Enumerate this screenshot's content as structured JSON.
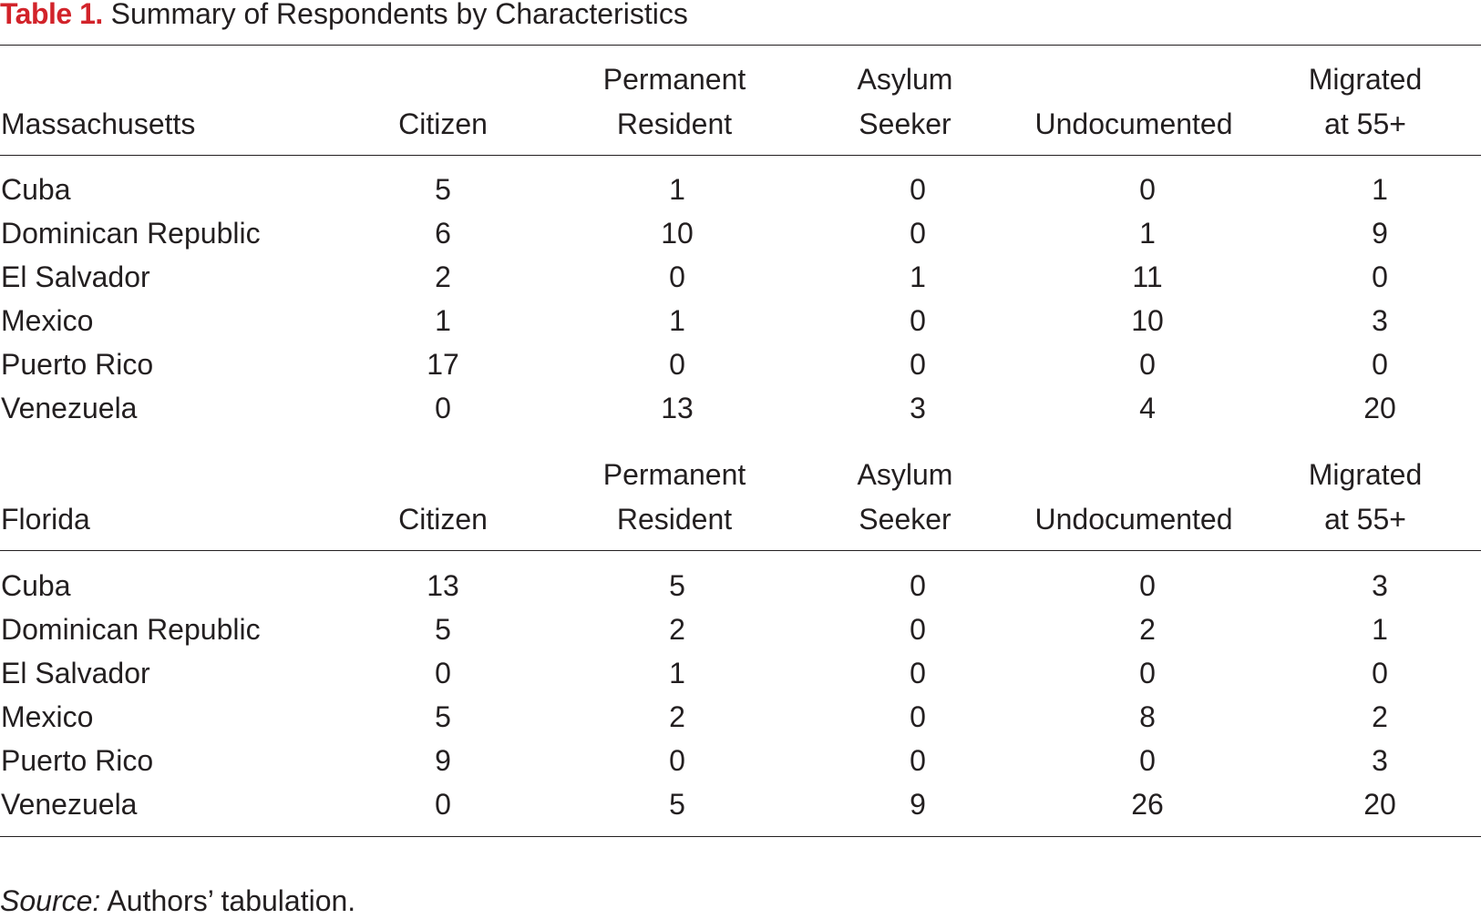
{
  "caption": {
    "label": "Table 1.",
    "text": "Summary of Respondents by Characteristics"
  },
  "columns": [
    {
      "line1": "",
      "line2": "Citizen"
    },
    {
      "line1": "Permanent",
      "line2": "Resident"
    },
    {
      "line1": "Asylum",
      "line2": "Seeker"
    },
    {
      "line1": "",
      "line2": "Undocumented"
    },
    {
      "line1": "Migrated",
      "line2": "at 55+"
    }
  ],
  "sections": [
    {
      "state": "Massachusetts",
      "rows": [
        {
          "country": "Cuba",
          "values": [
            "5",
            "1",
            "0",
            "0",
            "1"
          ]
        },
        {
          "country": "Dominican Republic",
          "values": [
            "6",
            "10",
            "0",
            "1",
            "9"
          ]
        },
        {
          "country": "El Salvador",
          "values": [
            "2",
            "0",
            "1",
            "11",
            "0"
          ]
        },
        {
          "country": "Mexico",
          "values": [
            "1",
            "1",
            "0",
            "10",
            "3"
          ]
        },
        {
          "country": "Puerto Rico",
          "values": [
            "17",
            "0",
            "0",
            "0",
            "0"
          ]
        },
        {
          "country": "Venezuela",
          "values": [
            "0",
            "13",
            "3",
            "4",
            "20"
          ]
        }
      ]
    },
    {
      "state": "Florida",
      "rows": [
        {
          "country": "Cuba",
          "values": [
            "13",
            "5",
            "0",
            "0",
            "3"
          ]
        },
        {
          "country": "Dominican Republic",
          "values": [
            "5",
            "2",
            "0",
            "2",
            "1"
          ]
        },
        {
          "country": "El Salvador",
          "values": [
            "0",
            "1",
            "0",
            "0",
            "0"
          ]
        },
        {
          "country": "Mexico",
          "values": [
            "5",
            "2",
            "0",
            "8",
            "2"
          ]
        },
        {
          "country": "Puerto Rico",
          "values": [
            "9",
            "0",
            "0",
            "0",
            "3"
          ]
        },
        {
          "country": "Venezuela",
          "values": [
            "0",
            "5",
            "9",
            "26",
            "20"
          ]
        }
      ]
    }
  ],
  "source": {
    "label": "Source:",
    "text": "Authors’ tabulation."
  }
}
